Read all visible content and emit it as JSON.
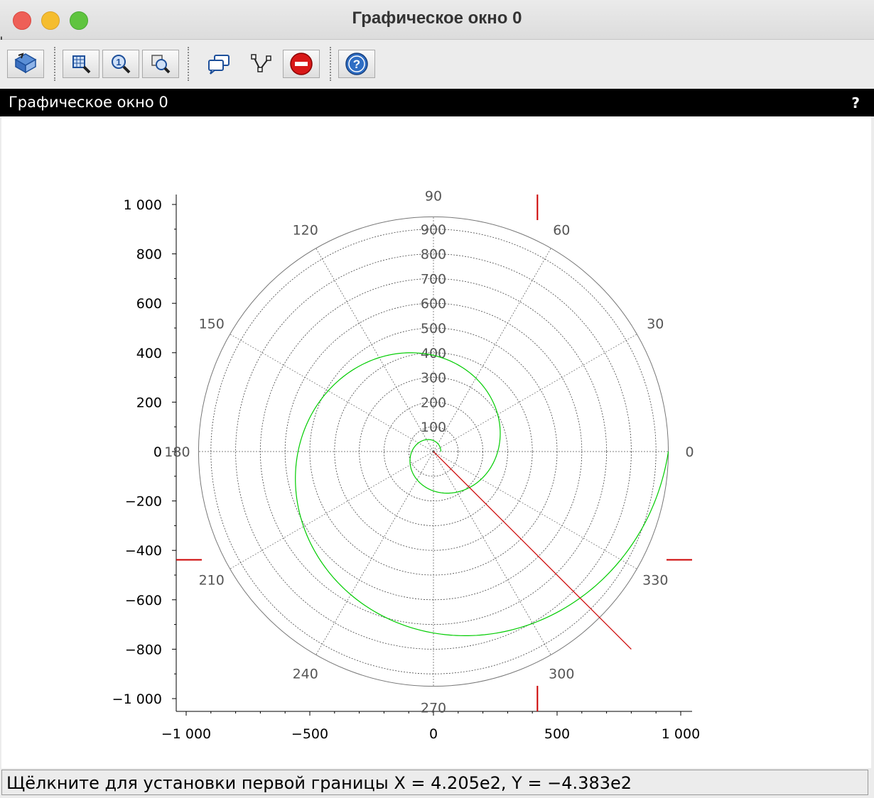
{
  "window": {
    "title": "Графическое окно 0",
    "edge_right": "o",
    "edge_left": "I"
  },
  "toolbar": {
    "items": [
      {
        "name": "rotate-tool-button",
        "icon": "rotate-3d-icon"
      },
      {
        "name": "zoom-area-button",
        "icon": "zoom-grid-icon"
      },
      {
        "name": "zoom-reset-button",
        "icon": "zoom-one-icon"
      },
      {
        "name": "zoom-out-button",
        "icon": "zoom-out-icon"
      },
      {
        "name": "datatip-button",
        "icon": "speech-bubbles-icon"
      },
      {
        "name": "edit-curve-button",
        "icon": "polyline-edit-icon"
      },
      {
        "name": "stop-button",
        "icon": "stop-icon"
      },
      {
        "name": "help-button",
        "icon": "help-icon"
      }
    ]
  },
  "dock": {
    "title": "Графическое окно 0",
    "help_glyph": "?"
  },
  "status": {
    "text": "Щёлкните для установки первой границы X = 4.205e2, Y = −4.383e2"
  },
  "chart_data": {
    "type": "polar",
    "x_ticks": [
      "−1 000",
      "−500",
      "0",
      "500",
      "1 000"
    ],
    "x_tick_values": [
      -1000,
      -500,
      0,
      500,
      1000
    ],
    "y_ticks": [
      "1 000",
      "800",
      "600",
      "400",
      "200",
      "0",
      "−200",
      "−400",
      "−600",
      "−800",
      "−1 000"
    ],
    "y_tick_values": [
      1000,
      800,
      600,
      400,
      200,
      0,
      -200,
      -400,
      -600,
      -800,
      -1000
    ],
    "xlim": [
      -1050,
      1050
    ],
    "ylim": [
      -1050,
      1050
    ],
    "radial_labels": [
      "100",
      "200",
      "300",
      "400",
      "500",
      "600",
      "700",
      "800",
      "900"
    ],
    "radial_values": [
      100,
      200,
      300,
      400,
      500,
      600,
      700,
      800,
      900
    ],
    "r_max": 950,
    "angle_labels": [
      "0",
      "30",
      "60",
      "90",
      "120",
      "150",
      "180",
      "210",
      "240",
      "270",
      "300",
      "330"
    ],
    "angle_values": [
      0,
      30,
      60,
      90,
      120,
      150,
      180,
      210,
      240,
      270,
      300,
      330
    ],
    "spiral": {
      "color": "#00cc00",
      "r_start": 30,
      "r_end": 950,
      "theta_turns": 2,
      "description_free": true
    },
    "line": {
      "color": "#cc0000",
      "from": [
        0,
        0
      ],
      "to": [
        800,
        -800
      ]
    },
    "cursor": {
      "color": "#cc0000",
      "x": 420.5,
      "y": -438.3
    }
  }
}
